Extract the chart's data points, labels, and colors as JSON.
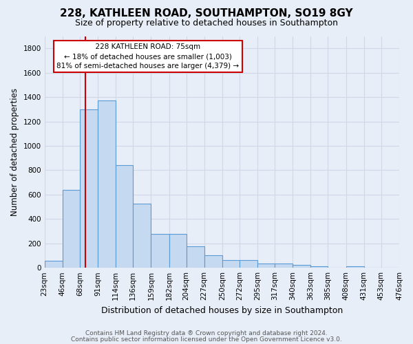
{
  "title": "228, KATHLEEN ROAD, SOUTHAMPTON, SO19 8GY",
  "subtitle": "Size of property relative to detached houses in Southampton",
  "xlabel": "Distribution of detached houses by size in Southampton",
  "ylabel": "Number of detached properties",
  "footer_line1": "Contains HM Land Registry data ® Crown copyright and database right 2024.",
  "footer_line2": "Contains public sector information licensed under the Open Government Licence v3.0.",
  "annotation_title": "228 KATHLEEN ROAD: 75sqm",
  "annotation_line1": "← 18% of detached houses are smaller (1,003)",
  "annotation_line2": "81% of semi-detached houses are larger (4,379) →",
  "property_size": 75,
  "bin_edges": [
    23,
    46,
    68,
    91,
    114,
    136,
    159,
    182,
    204,
    227,
    250,
    272,
    295,
    317,
    340,
    363,
    385,
    408,
    431,
    453,
    476
  ],
  "bin_counts": [
    55,
    640,
    1300,
    1370,
    840,
    525,
    275,
    275,
    175,
    105,
    65,
    65,
    37,
    37,
    25,
    15,
    2,
    12,
    2,
    2,
    0
  ],
  "bar_facecolor": "#c5d9f0",
  "bar_edgecolor": "#5b9bd5",
  "vline_color": "#cc0000",
  "bg_color": "#e8eef8",
  "grid_color": "#d0d8e8",
  "annotation_box_facecolor": "#ffffff",
  "annotation_box_edgecolor": "#cc0000",
  "ylim": [
    0,
    1900
  ],
  "yticks": [
    0,
    200,
    400,
    600,
    800,
    1000,
    1200,
    1400,
    1600,
    1800
  ],
  "title_fontsize": 11,
  "subtitle_fontsize": 9,
  "ylabel_fontsize": 8.5,
  "xlabel_fontsize": 9,
  "tick_fontsize": 7.5,
  "footer_fontsize": 6.5
}
